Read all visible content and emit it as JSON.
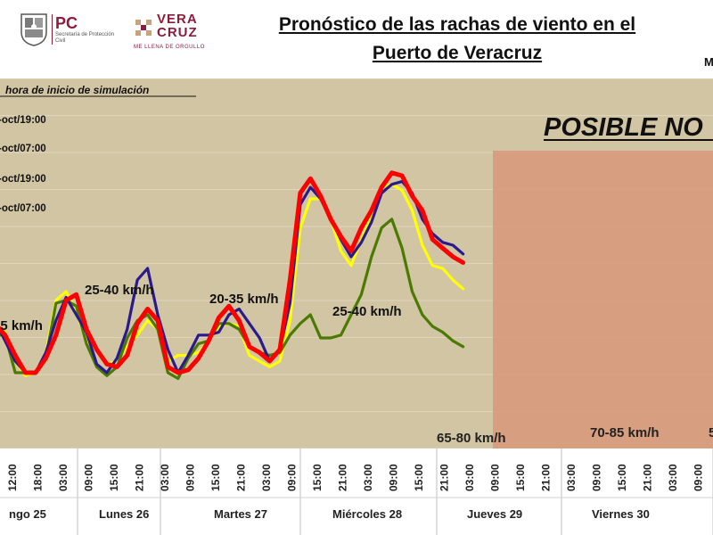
{
  "header": {
    "pc_logo_text": "PC",
    "pc_logo_sub": "Secretaría de Protección Civil",
    "vc_logo_text": "VERA CRUZ",
    "vc_logo_sub": "ME LLENA DE ORGULLO",
    "title_line1": "Pronóstico de las rachas de viento en el",
    "title_line2": "Puerto de Veracruz",
    "title_right_fragment": "M"
  },
  "chart_data": {
    "type": "line",
    "legend_title": "hora de inicio de simulación",
    "legend_placement": "top-left",
    "title": "",
    "xlabel": "",
    "ylabel": "",
    "x": [
      "06:00",
      "09:00",
      "12:00",
      "15:00",
      "18:00",
      "21:00",
      "00:00",
      "03:00",
      "06:00",
      "09:00",
      "12:00",
      "15:00",
      "18:00",
      "21:00",
      "00:00",
      "03:00",
      "06:00",
      "09:00",
      "12:00",
      "15:00",
      "18:00",
      "21:00",
      "00:00",
      "03:00",
      "06:00",
      "09:00",
      "12:00",
      "15:00",
      "18:00",
      "21:00",
      "00:00",
      "03:00",
      "06:00",
      "09:00",
      "12:00",
      "15:00",
      "18:00",
      "21:00",
      "00:00",
      "03:00",
      "06:00",
      "09:00",
      "12:00",
      "15:00",
      "18:00",
      "21:00",
      "00:00",
      "03:00",
      "06:00",
      "09:00"
    ],
    "tick_labels": [
      "12:00",
      "18:00",
      "03:00",
      "09:00",
      "15:00",
      "21:00",
      "03:00",
      "09:00",
      "15:00",
      "21:00",
      "03:00",
      "09:00",
      "15:00",
      "21:00",
      "03:00",
      "09:00",
      "15:00",
      "21:00",
      "03:00",
      "09:00",
      "15:00",
      "21:00",
      "03:00",
      "09:00",
      "15:00",
      "21:00",
      "03:00",
      "09:00",
      "15:00",
      "21:00",
      "03:00",
      "09:00",
      "15:00",
      "21:00",
      "03:00"
    ],
    "day_labels": [
      "ngo 25",
      "Lunes 26",
      "Martes 27",
      "Miércoles 28",
      "Jueves 29",
      "Viernes 30"
    ],
    "series": [
      {
        "name": "-oct/19:00",
        "color": "#ffff00",
        "values": [
          27,
          27,
          30,
          37,
          34,
          24,
          19,
          20,
          27,
          45,
          48,
          41,
          31,
          28,
          23,
          24,
          29,
          33,
          38,
          35,
          24,
          26,
          26,
          27,
          31,
          36,
          37,
          36,
          26,
          24,
          22,
          24,
          38,
          70,
          80,
          80,
          73,
          62,
          57,
          66,
          74,
          84,
          85,
          83,
          76,
          64,
          57,
          56,
          52,
          49
        ]
      },
      {
        "name": "-oct/07:00",
        "color": "#4a7a00",
        "values": [
          25,
          25,
          28,
          33,
          33,
          20,
          20,
          20,
          25,
          44,
          45,
          43,
          30,
          22,
          19,
          22,
          32,
          38,
          40,
          35,
          20,
          18,
          25,
          30,
          31,
          37,
          37,
          35,
          29,
          27,
          26,
          27,
          33,
          37,
          40,
          32,
          32,
          33,
          40,
          47,
          60,
          70,
          73,
          63,
          48,
          40,
          36,
          34,
          31,
          29
        ]
      },
      {
        "name": "-oct/19:00",
        "color": "#2a1a8c",
        "values": [
          23,
          25,
          35,
          38,
          31,
          24,
          20,
          20,
          27,
          38,
          46,
          40,
          34,
          23,
          20,
          25,
          35,
          52,
          56,
          40,
          28,
          20,
          26,
          33,
          33,
          34,
          40,
          42,
          37,
          32,
          24,
          28,
          44,
          78,
          84,
          80,
          73,
          66,
          60,
          65,
          72,
          82,
          85,
          86,
          82,
          73,
          68,
          65,
          64,
          61
        ]
      },
      {
        "name": "-oct/07:00",
        "color": "#ff0000",
        "values": [
          22,
          23,
          33,
          37,
          33,
          26,
          20,
          20,
          25,
          33,
          45,
          47,
          35,
          28,
          23,
          22,
          26,
          37,
          42,
          38,
          22,
          20,
          21,
          25,
          31,
          39,
          43,
          38,
          29,
          27,
          24,
          28,
          52,
          82,
          87,
          81,
          73,
          67,
          62,
          70,
          76,
          84,
          89,
          88,
          81,
          76,
          66,
          63,
          60,
          58
        ]
      }
    ],
    "ylim": [
      0,
      100
    ],
    "grid": true,
    "shaded_region": {
      "from": "09:00",
      "label": "POSIBLE NO",
      "color": "#d9967a"
    },
    "annotations": [
      "35 km/h",
      "25-40 km/h",
      "20-35 km/h",
      "25-40 km/h",
      "65-80 km/h",
      "70-85 km/h",
      "5"
    ]
  },
  "colors": {
    "plot_bg": "#d1c5a3",
    "gridline": "#ffffff",
    "shade": "#d9967a",
    "brand": "#8b1c3c"
  }
}
